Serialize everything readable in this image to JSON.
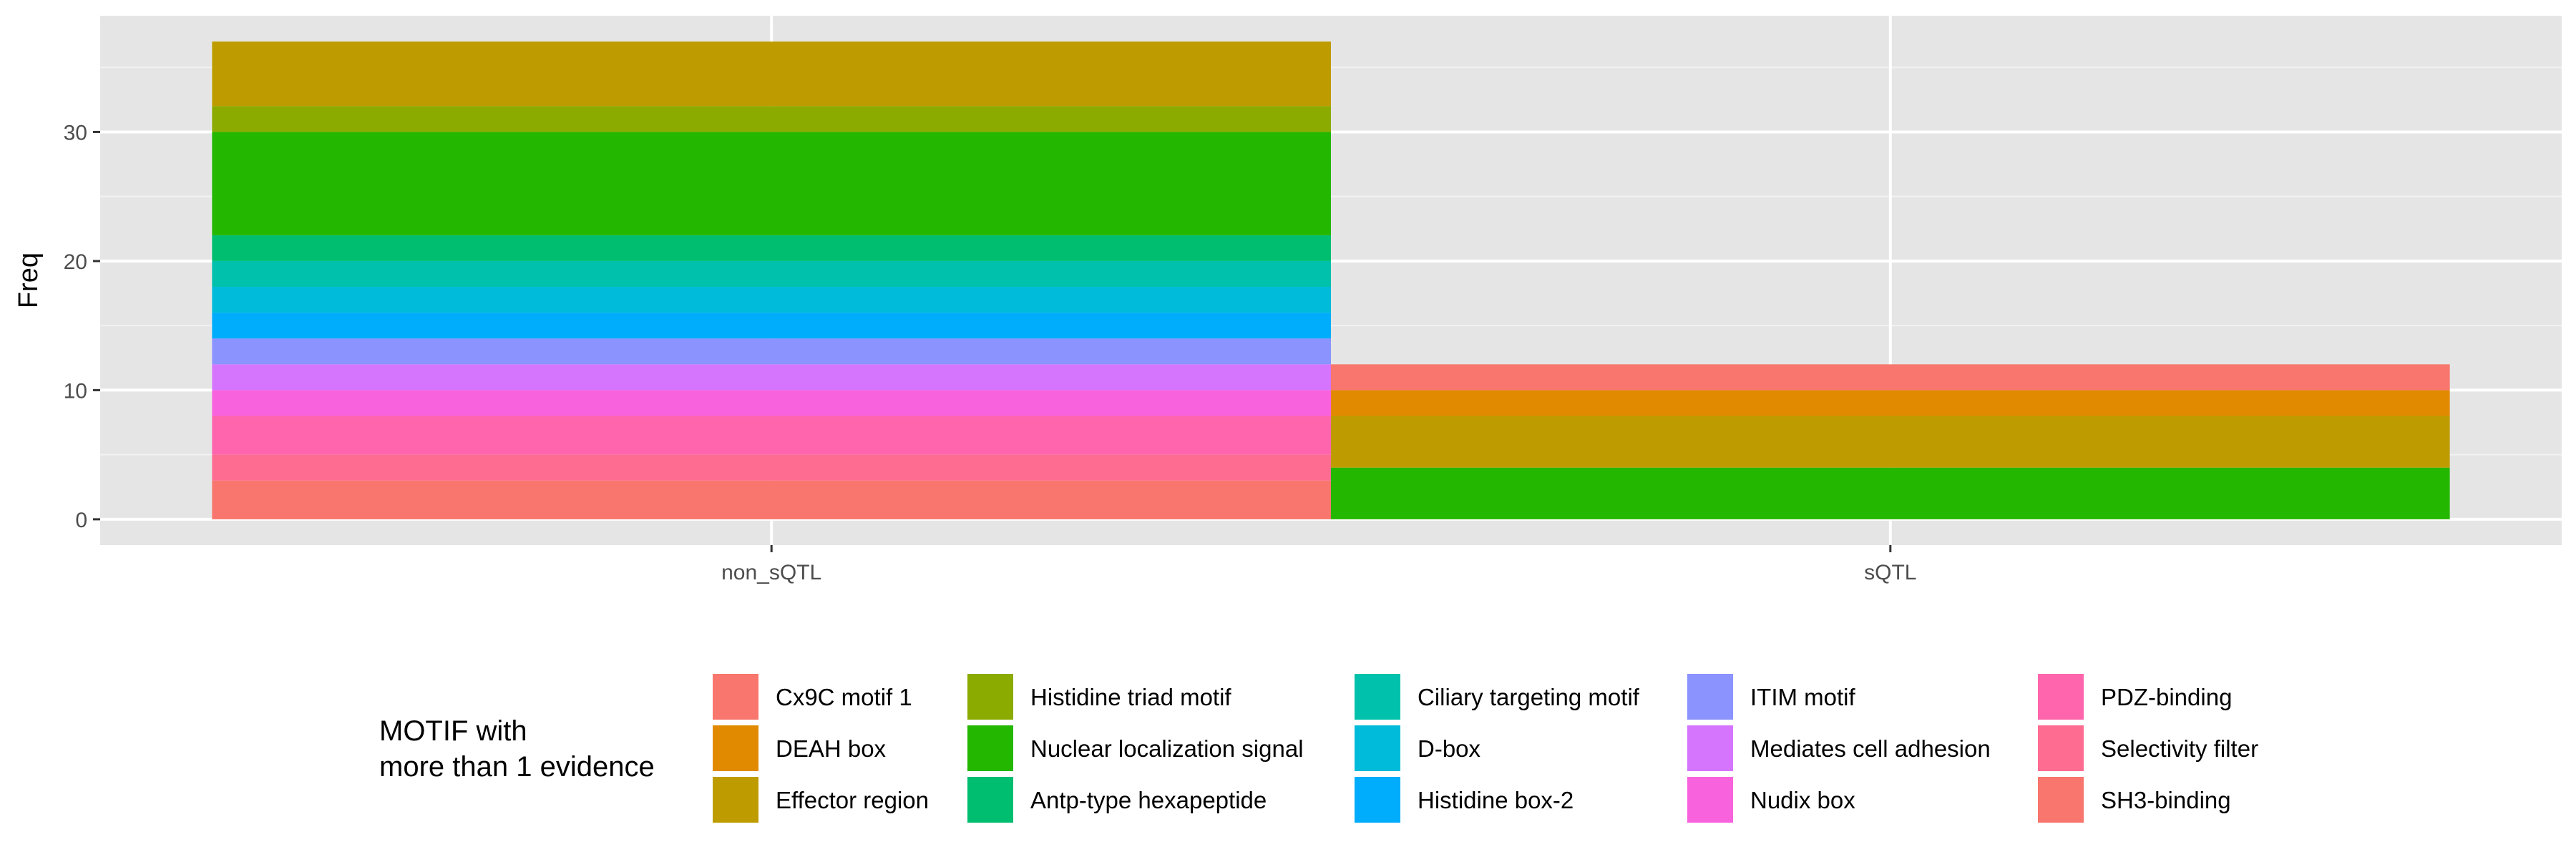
{
  "chart_data": {
    "type": "bar",
    "stacked": true,
    "categories": [
      "non_sQTL",
      "sQTL"
    ],
    "ylabel": "Freq",
    "xlabel": "",
    "ylim": [
      -2,
      39
    ],
    "yticks": [
      0,
      10,
      20,
      30
    ],
    "grid": true,
    "legend_title": "MOTIF with\nmore than 1 evidence",
    "legend_position": "bottom",
    "series": [
      {
        "name": "Cx9C motif 1",
        "color": "#F8766D",
        "values": [
          0,
          2
        ]
      },
      {
        "name": "DEAH box",
        "color": "#E18A00",
        "values": [
          0,
          2
        ]
      },
      {
        "name": "Effector region",
        "color": "#BE9C00",
        "values": [
          5,
          4
        ]
      },
      {
        "name": "Histidine triad motif",
        "color": "#8CAB00",
        "values": [
          2,
          0
        ]
      },
      {
        "name": "Nuclear localization signal",
        "color": "#24B700",
        "values": [
          8,
          4
        ]
      },
      {
        "name": "Antp-type hexapeptide",
        "color": "#00BE70",
        "values": [
          2,
          0
        ]
      },
      {
        "name": "Ciliary targeting motif",
        "color": "#00C1AB",
        "values": [
          2,
          0
        ]
      },
      {
        "name": "D-box",
        "color": "#00BBDA",
        "values": [
          2,
          0
        ]
      },
      {
        "name": "Histidine box-2",
        "color": "#00ACFC",
        "values": [
          2,
          0
        ]
      },
      {
        "name": "ITIM motif",
        "color": "#8B93FF",
        "values": [
          2,
          0
        ]
      },
      {
        "name": "Mediates cell adhesion",
        "color": "#D575FE",
        "values": [
          2,
          0
        ]
      },
      {
        "name": "Nudix box",
        "color": "#F962DD",
        "values": [
          2,
          0
        ]
      },
      {
        "name": "PDZ-binding",
        "color": "#FF65AC",
        "values": [
          3,
          0
        ]
      },
      {
        "name": "Selectivity filter",
        "color": "#FF6C91",
        "values": [
          2,
          0
        ]
      },
      {
        "name": "SH3-binding",
        "color": "#F8766D",
        "values": [
          3,
          0
        ]
      }
    ]
  }
}
